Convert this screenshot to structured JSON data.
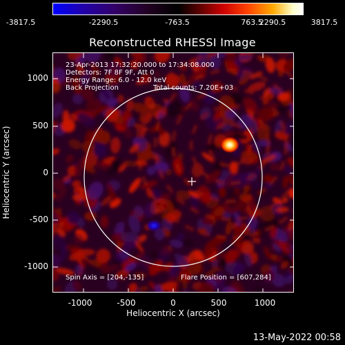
{
  "colorbar": {
    "ticks": [
      "-3817.5",
      "-2290.5",
      "-763.5",
      "763.5",
      "2290.5",
      "3817.5"
    ]
  },
  "title": "Reconstructed RHESSI Image",
  "annotations": {
    "time": "23-Apr-2013 17:32:20.000 to 17:34:08.000",
    "detectors": "Detectors: 7F 8F 9F, Att 0",
    "energy": "Energy Range: 6.0 - 12.0 keV",
    "method": "Back Projection",
    "counts": "Total counts: 7.20E+03",
    "spin_axis": "Spin Axis = [204,-135]",
    "flare_position": "Flare Position = [607,284]"
  },
  "axes": {
    "xlabel": "Heliocentric X (arcsec)",
    "ylabel": "Heliocentric Y (arcsec)",
    "xticks": [
      "-1000",
      "-500",
      "0",
      "500",
      "1000"
    ],
    "yticks": [
      "1000",
      "500",
      "0",
      "-500",
      "-1000"
    ]
  },
  "footer": {
    "timestamp": "13-May-2022 00:58"
  }
}
